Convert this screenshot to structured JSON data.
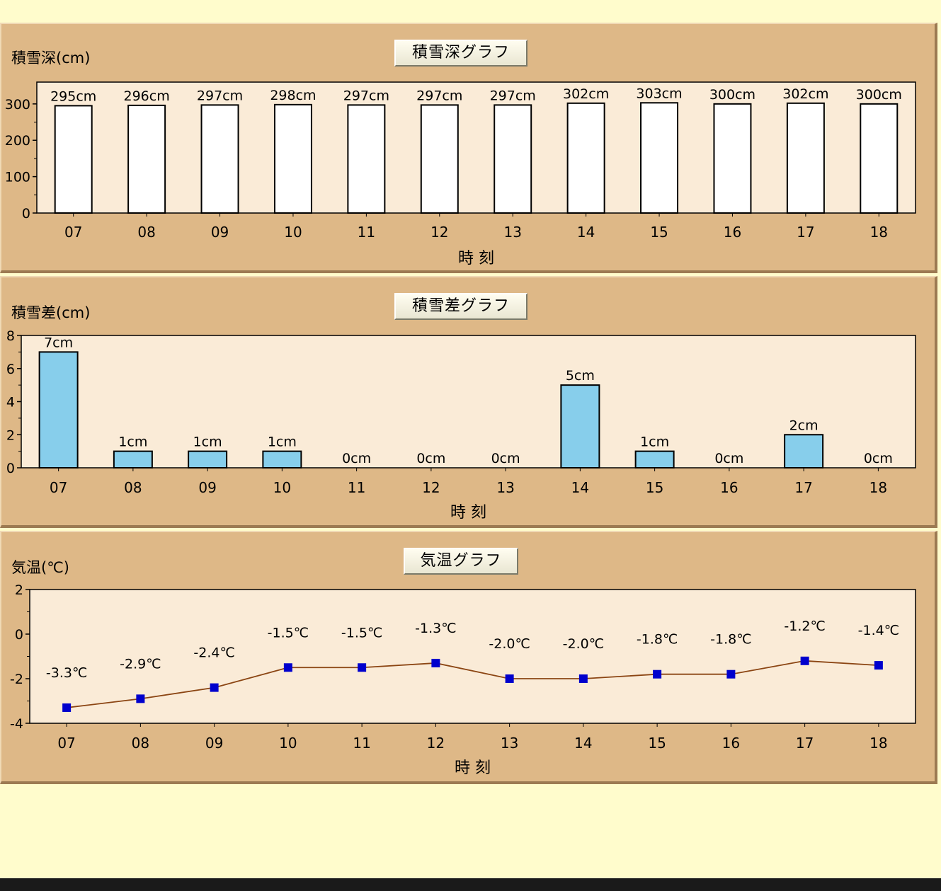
{
  "colors": {
    "page_bg": "#fffccc",
    "panel_bg": "#deb887",
    "plot_bg": "#faebd7",
    "depth_bar": "#ffffff",
    "diff_bar": "#87ceeb",
    "temp_line": "#8b4513",
    "temp_marker": "#0000cd"
  },
  "chart_data": [
    {
      "type": "bar",
      "button_label": "積雪深グラフ",
      "ylabel": "積雪深(cm)",
      "xlabel": "時 刻",
      "categories": [
        "07",
        "08",
        "09",
        "10",
        "11",
        "12",
        "13",
        "14",
        "15",
        "16",
        "17",
        "18"
      ],
      "values": [
        295,
        296,
        297,
        298,
        297,
        297,
        297,
        302,
        303,
        300,
        302,
        300
      ],
      "data_labels": [
        "295cm",
        "296cm",
        "297cm",
        "298cm",
        "297cm",
        "297cm",
        "297cm",
        "302cm",
        "303cm",
        "300cm",
        "302cm",
        "300cm"
      ],
      "yticks": [
        0,
        100,
        200,
        300
      ],
      "ylim": [
        0,
        360
      ]
    },
    {
      "type": "bar",
      "button_label": "積雪差グラフ",
      "ylabel": "積雪差(cm)",
      "xlabel": "時 刻",
      "categories": [
        "07",
        "08",
        "09",
        "10",
        "11",
        "12",
        "13",
        "14",
        "15",
        "16",
        "17",
        "18"
      ],
      "values": [
        7,
        1,
        1,
        1,
        0,
        0,
        0,
        5,
        1,
        0,
        2,
        0
      ],
      "data_labels": [
        "7cm",
        "1cm",
        "1cm",
        "1cm",
        "0cm",
        "0cm",
        "0cm",
        "5cm",
        "1cm",
        "0cm",
        "2cm",
        "0cm"
      ],
      "yticks": [
        0,
        2,
        4,
        6,
        8
      ],
      "ylim": [
        0,
        8
      ]
    },
    {
      "type": "line",
      "button_label": "気温グラフ",
      "ylabel": "気温(℃)",
      "xlabel": "時 刻",
      "categories": [
        "07",
        "08",
        "09",
        "10",
        "11",
        "12",
        "13",
        "14",
        "15",
        "16",
        "17",
        "18"
      ],
      "values": [
        -3.3,
        -2.9,
        -2.4,
        -1.5,
        -1.5,
        -1.3,
        -2.0,
        -2.0,
        -1.8,
        -1.8,
        -1.2,
        -1.4
      ],
      "data_labels": [
        "-3.3℃",
        "-2.9℃",
        "-2.4℃",
        "-1.5℃",
        "-1.5℃",
        "-1.3℃",
        "-2.0℃",
        "-2.0℃",
        "-1.8℃",
        "-1.8℃",
        "-1.2℃",
        "-1.4℃"
      ],
      "yticks": [
        -4,
        -2,
        0,
        2
      ],
      "ylim": [
        -4,
        2
      ]
    }
  ]
}
